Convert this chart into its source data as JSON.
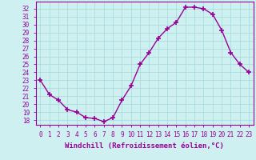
{
  "x": [
    0,
    1,
    2,
    3,
    4,
    5,
    6,
    7,
    8,
    9,
    10,
    11,
    12,
    13,
    14,
    15,
    16,
    17,
    18,
    19,
    20,
    21,
    22,
    23
  ],
  "y": [
    23.0,
    21.2,
    20.5,
    19.3,
    19.0,
    18.3,
    18.2,
    17.8,
    18.3,
    20.5,
    22.3,
    25.0,
    26.5,
    28.3,
    29.5,
    30.3,
    32.2,
    32.2,
    32.0,
    31.3,
    29.3,
    26.5,
    25.0,
    24.0
  ],
  "line_color": "#990099",
  "marker": "+",
  "markersize": 4,
  "linewidth": 1.0,
  "bg_color": "#cef0f0",
  "grid_color": "#aadddd",
  "xlabel": "Windchill (Refroidissement éolien,°C)",
  "xlabel_fontsize": 6.5,
  "xtick_labels": [
    "0",
    "1",
    "2",
    "3",
    "4",
    "5",
    "6",
    "7",
    "8",
    "9",
    "10",
    "11",
    "12",
    "13",
    "14",
    "15",
    "16",
    "17",
    "18",
    "19",
    "20",
    "21",
    "22",
    "23"
  ],
  "ytick_vals": [
    18,
    19,
    20,
    21,
    22,
    23,
    24,
    25,
    26,
    27,
    28,
    29,
    30,
    31,
    32
  ],
  "ylim": [
    17.4,
    32.9
  ],
  "xlim": [
    -0.5,
    23.5
  ],
  "tick_fontsize": 5.5
}
